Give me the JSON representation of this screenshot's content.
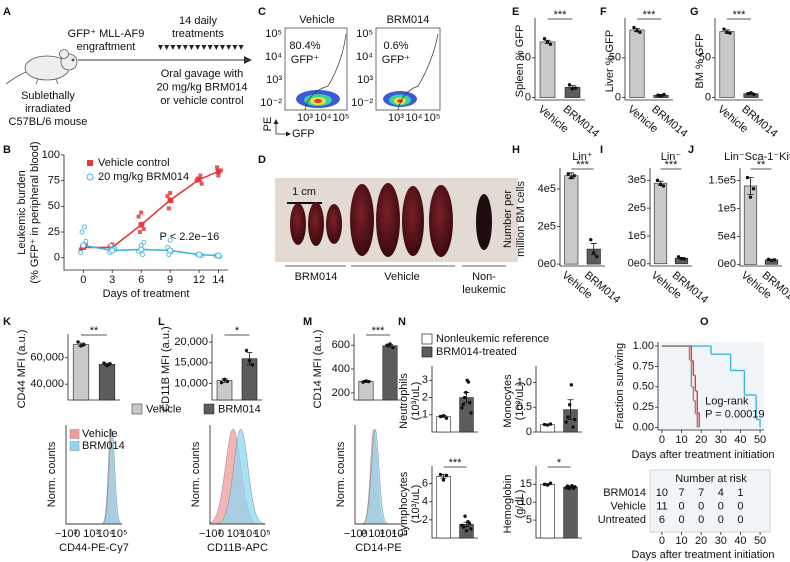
{
  "schematic": {
    "panel": "A",
    "mouse": [
      "Sublethally",
      "irradiated",
      "C57BL/6 mouse"
    ],
    "engraftment": [
      "GFP⁺ MLL-AF9",
      "engraftment"
    ],
    "treatments": [
      "14 daily",
      "treatments"
    ],
    "gavage": [
      "Oral gavage with",
      "20 mg/kg BRM014",
      "or vehicle control"
    ]
  },
  "flow": {
    "panel": "C",
    "plots": [
      {
        "title": "Vehicle",
        "percent": "80.4%",
        "gate": "GFP⁺"
      },
      {
        "title": "BRM014",
        "percent": "0.6%",
        "gate": "GFP⁺"
      }
    ],
    "yticks": [
      "10⁵",
      "10⁴",
      "10³",
      "10⁻²"
    ],
    "xticks": [
      "10³",
      "10⁴",
      "10⁵"
    ],
    "ylabel": "PE",
    "xlabel": "GFP"
  },
  "photo": {
    "panel": "D",
    "scale": "1 cm",
    "groups": [
      [
        "BRM014"
      ],
      [
        "Vehicle"
      ],
      [
        "Non-",
        "leukemic"
      ]
    ]
  },
  "histograms": {
    "ylabel": "Norm. counts",
    "xticks": [
      "−10³",
      "0",
      "10³",
      "10⁴",
      "10⁵"
    ],
    "xlabels": [
      "CD44-PE-Cy7",
      "CD11B-APC",
      "CD14-PE"
    ],
    "legend": [
      {
        "name": "Vehicle",
        "color": "#f29b9b"
      },
      {
        "name": "BRM014",
        "color": "#8fd7f0"
      }
    ]
  },
  "klm_legend": [
    {
      "name": "Vehicle",
      "color": "#c9c9c9"
    },
    {
      "name": "BRM014",
      "color": "#5c5c5c"
    }
  ],
  "n_legend": [
    {
      "name": "Nonleukemic reference",
      "color": "#ffffff"
    },
    {
      "name": "BRM014-treated",
      "color": "#5c5c5c"
    }
  ],
  "risk_table": {
    "title": "Number at risk",
    "counts": [
      [
        10,
        7,
        7,
        4,
        1
      ],
      [
        11,
        0,
        0,
        0,
        0
      ],
      [
        6,
        0,
        0,
        0,
        0
      ]
    ],
    "xticks": [
      0,
      10,
      20,
      30,
      40,
      50
    ],
    "xlabel": "Days after treatment initiation"
  },
  "chart_data": [
    {
      "type": "line",
      "panel": "B",
      "ylabel": [
        "Leukemic burden",
        "(% GFP⁺ in peripheral blood)"
      ],
      "xlabel": "Days of treatment",
      "annotation": "P < 2.2e−16",
      "legend": "upper left",
      "xlim": [
        -2,
        15
      ],
      "ylim": [
        -12,
        100
      ],
      "xticks": [
        0,
        3,
        6,
        9,
        12,
        14
      ],
      "yticks": [
        0,
        25,
        50,
        75,
        100
      ],
      "series": [
        {
          "name": "Vehicle control",
          "color": "#e8383d",
          "marker": "square",
          "x": [
            0,
            3,
            6,
            9,
            12,
            14
          ],
          "values": [
            10,
            10,
            32,
            56,
            76,
            84
          ],
          "points": {
            "x": [
              0,
              0,
              0,
              0,
              3,
              3,
              3,
              3,
              6,
              6,
              6,
              6,
              6,
              9,
              9,
              9,
              9,
              12,
              12,
              12,
              12,
              14,
              14,
              14
            ],
            "values": [
              8,
              10,
              12,
              10,
              9,
              11,
              13,
              8,
              25,
              33,
              40,
              44,
              28,
              48,
              55,
              60,
              63,
              72,
              77,
              80,
              75,
              80,
              85,
              88
            ]
          }
        },
        {
          "name": "20 mg/kg BRM014",
          "color": "#3fb6e0",
          "marker": "circle",
          "x": [
            0,
            3,
            6,
            9,
            12,
            14
          ],
          "values": [
            12,
            7,
            8,
            7,
            3,
            2
          ],
          "points": {
            "x": [
              0,
              0,
              0,
              0,
              0,
              3,
              3,
              3,
              3,
              6,
              6,
              6,
              6,
              9,
              9,
              9,
              9,
              12,
              12,
              14,
              14
            ],
            "values": [
              5,
              12,
              16,
              25,
              30,
              5,
              7,
              9,
              12,
              3,
              6,
              12,
              15,
              3,
              6,
              10,
              17,
              2,
              3,
              1,
              2
            ]
          }
        }
      ]
    },
    {
      "type": "bar",
      "panel": "E",
      "ylabel": "Spleen % GFP",
      "categories": [
        "Vehicle",
        "BRM014"
      ],
      "values": [
        70,
        13
      ],
      "errors": [
        2,
        2
      ],
      "points": [
        [
          74,
          70,
          67
        ],
        [
          16,
          11,
          12
        ]
      ],
      "colors": [
        "#c9c9c9",
        "#5c5c5c"
      ],
      "ylim": [
        -3,
        95
      ],
      "yticks": [
        0,
        50
      ],
      "significance": "***"
    },
    {
      "type": "bar",
      "panel": "F",
      "ylabel": "Liver % GFP",
      "categories": [
        "Vehicle",
        "BRM014"
      ],
      "values": [
        85,
        3
      ],
      "errors": [
        2,
        1
      ],
      "points": [
        [
          88,
          84,
          82
        ],
        [
          3,
          2,
          4
        ]
      ],
      "colors": [
        "#c9c9c9",
        "#5c5c5c"
      ],
      "ylim": [
        -3,
        95
      ],
      "yticks": [
        0,
        50
      ],
      "significance": "***"
    },
    {
      "type": "bar",
      "panel": "G",
      "ylabel": "BM % GFP",
      "categories": [
        "Vehicle",
        "BRM014"
      ],
      "values": [
        83,
        5
      ],
      "errors": [
        2,
        1
      ],
      "points": [
        [
          86,
          82,
          81
        ],
        [
          5,
          6,
          4
        ]
      ],
      "colors": [
        "#c9c9c9",
        "#5c5c5c"
      ],
      "ylim": [
        -3,
        95
      ],
      "yticks": [
        0,
        50
      ],
      "significance": "***"
    },
    {
      "type": "bar",
      "panel": "H",
      "title": "Lin⁺",
      "ylabel": [
        "Number per",
        "million BM cells"
      ],
      "categories": [
        "Vehicle",
        "BRM014"
      ],
      "values": [
        470000,
        80000
      ],
      "errors": [
        15000,
        30000
      ],
      "points": [
        [
          480000,
          460000,
          470000
        ],
        [
          130000,
          60000,
          40000
        ]
      ],
      "colors": [
        "#c9c9c9",
        "#5c5c5c"
      ],
      "ylim": [
        -10000,
        490000
      ],
      "yticks": [
        {
          "value": 0,
          "label": "0e0"
        },
        {
          "value": 200000,
          "label": "2e5"
        },
        {
          "value": 400000,
          "label": "4e5"
        }
      ],
      "significance": "***"
    },
    {
      "type": "bar",
      "panel": "I",
      "title": "Lin⁻",
      "categories": [
        "Vehicle",
        "BRM014"
      ],
      "values": [
        290000,
        20000
      ],
      "errors": [
        7000,
        3000
      ],
      "points": [
        [
          300000,
          285000,
          280000
        ],
        [
          25000,
          18000,
          17000
        ]
      ],
      "colors": [
        "#c9c9c9",
        "#5c5c5c"
      ],
      "ylim": [
        -8000,
        330000
      ],
      "yticks": [
        {
          "value": 0,
          "label": "0e0"
        },
        {
          "value": 100000,
          "label": "1e5"
        },
        {
          "value": 200000,
          "label": "2e5"
        },
        {
          "value": 300000,
          "label": "3e5"
        }
      ],
      "significance": "***"
    },
    {
      "type": "bar",
      "panel": "J",
      "title": "Lin⁻Sca-1⁻Kit⁺",
      "categories": [
        "Vehicle",
        "BRM014"
      ],
      "values": [
        140000,
        8000
      ],
      "errors": [
        15000,
        1000
      ],
      "points": [
        [
          155000,
          120000,
          135000
        ],
        [
          9000,
          7000,
          8000
        ]
      ],
      "colors": [
        "#c9c9c9",
        "#5c5c5c"
      ],
      "ylim": [
        -3000,
        165000
      ],
      "yticks": [
        {
          "value": 0,
          "label": "0e0"
        },
        {
          "value": 50000,
          "label": "5e4"
        },
        {
          "value": 100000,
          "label": "1e5"
        },
        {
          "value": 150000,
          "label": "1.5e5"
        }
      ],
      "significance": "**"
    },
    {
      "type": "bar",
      "panel": "K",
      "ylabel": "CD44 MFI (a.u.)",
      "values": [
        70000,
        55000
      ],
      "errors": [
        1200,
        800
      ],
      "points": [
        [
          72000,
          69000,
          70000
        ],
        [
          56000,
          54000,
          55500
        ]
      ],
      "colors": [
        "#c9c9c9",
        "#5c5c5c"
      ],
      "ylim": [
        28000,
        75000
      ],
      "yticks": [
        {
          "value": 40000,
          "label": "40,000"
        },
        {
          "value": 60000,
          "label": "60,000"
        }
      ],
      "significance": "**"
    },
    {
      "type": "bar",
      "panel": "L",
      "ylabel": "CD11B MFI (a.u.)",
      "values": [
        10700,
        16000
      ],
      "errors": [
        400,
        1500
      ],
      "points": [
        [
          10200,
          11000,
          10500
        ],
        [
          18000,
          15500,
          14500
        ]
      ],
      "colors": [
        "#c9c9c9",
        "#5c5c5c"
      ],
      "ylim": [
        6000,
        21000
      ],
      "yticks": [
        {
          "value": 10000,
          "label": "10,000"
        },
        {
          "value": 15000,
          "label": "15,000"
        },
        {
          "value": 20000,
          "label": "20,000"
        }
      ],
      "significance": "*"
    },
    {
      "type": "bar",
      "panel": "M",
      "ylabel": "CD14 MFI (a.u.)",
      "values": [
        295,
        595
      ],
      "errors": [
        8,
        10
      ],
      "points": [
        [
          290,
          300,
          295
        ],
        [
          600,
          610,
          580
        ]
      ],
      "colors": [
        "#c9c9c9",
        "#5c5c5c"
      ],
      "ylim": [
        140,
        660
      ],
      "yticks": [
        200,
        400,
        600
      ],
      "significance": "***"
    },
    {
      "type": "bar",
      "panel": "N",
      "ylabel": [
        "Neutrophils",
        "(10³/uL)"
      ],
      "values": [
        0.9,
        2.0
      ],
      "errors": [
        0.05,
        0.3
      ],
      "points": [
        [
          0.9,
          0.95,
          0.8
        ],
        [
          1.4,
          1.6,
          2.0,
          2.3,
          3.0,
          2.9,
          1.7,
          1.1
        ]
      ],
      "colors": [
        "#ffffff",
        "#5c5c5c"
      ],
      "ylim": [
        0,
        3.6
      ],
      "yticks": [
        1,
        2,
        3
      ]
    },
    {
      "type": "bar",
      "ylabel": [
        "Monocytes",
        "(10³/uL)"
      ],
      "values": [
        0.15,
        0.45
      ],
      "errors": [
        0.01,
        0.2
      ],
      "points": [
        [
          0.15,
          0.14,
          0.16
        ],
        [
          0.2,
          0.3,
          0.55,
          0.95,
          0.1,
          0.25
        ]
      ],
      "colors": [
        "#ffffff",
        "#5c5c5c"
      ],
      "ylim": [
        0,
        1.25
      ],
      "yticks": [
        0,
        0.5,
        {
          "value": 1,
          "label": "1.0"
        }
      ]
    },
    {
      "type": "bar",
      "ylabel": [
        "Lymphocytes",
        "(10³/uL)"
      ],
      "values": [
        6.8,
        1.5
      ],
      "errors": [
        0.2,
        0.25
      ],
      "points": [
        [
          7.0,
          6.4,
          6.9
        ],
        [
          1.4,
          1.2,
          2.4,
          0.8,
          1.8,
          1.6,
          1.0
        ]
      ],
      "colors": [
        "#ffffff",
        "#5c5c5c"
      ],
      "ylim": [
        0,
        7.5
      ],
      "yticks": [
        2,
        4,
        6
      ],
      "significance": "***"
    },
    {
      "type": "bar",
      "ylabel": [
        "Hemoglobin",
        "(g/dL)"
      ],
      "values": [
        15,
        14.2
      ],
      "errors": [
        0.2,
        0.3
      ],
      "points": [
        [
          15,
          14.8,
          15.3
        ],
        [
          14,
          14.5,
          13.8,
          14.2,
          14.6,
          13.9,
          14.3
        ]
      ],
      "colors": [
        "#ffffff",
        "#5c5c5c"
      ],
      "ylim": [
        0,
        19
      ],
      "yticks": [
        5,
        10,
        15
      ],
      "significance": "*"
    },
    {
      "type": "step",
      "panel": "O",
      "ylabel": "Fraction surviving",
      "xlabel": "Days after treatment initiation",
      "annotation": [
        "Log-rank",
        "P = 0.00019"
      ],
      "xlim": [
        -2,
        52
      ],
      "ylim": [
        -0.03,
        1.05
      ],
      "xticks": [
        0,
        10,
        20,
        30,
        40,
        50
      ],
      "yticks": [
        {
          "value": 0,
          "label": "0.00"
        },
        {
          "value": 0.25,
          "label": "0.25"
        },
        {
          "value": 0.5,
          "label": "0.50"
        },
        {
          "value": 0.75,
          "label": "0.75"
        },
        {
          "value": 1,
          "label": "1.00"
        }
      ],
      "series": [
        {
          "name": "BRM014",
          "color": "#3fb6e0",
          "x": [
            0,
            25,
            35,
            42,
            48,
            50
          ],
          "values": [
            1,
            0.9,
            0.7,
            0.4,
            0.1,
            0
          ]
        },
        {
          "name": "Vehicle",
          "color": "#e8383d",
          "x": [
            0,
            15,
            16,
            17,
            18,
            19
          ],
          "values": [
            1,
            0.82,
            0.64,
            0.45,
            0.18,
            0
          ]
        },
        {
          "name": "Untreated",
          "color": "#8c8c8c",
          "x": [
            0,
            14,
            15,
            16,
            17,
            18
          ],
          "values": [
            1,
            0.83,
            0.5,
            0.33,
            0.17,
            0
          ]
        }
      ]
    }
  ]
}
